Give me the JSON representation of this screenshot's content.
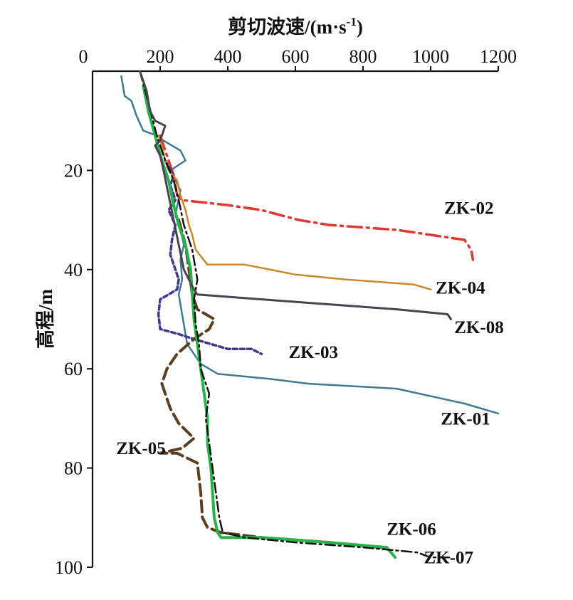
{
  "chart_data": {
    "type": "line",
    "title": "",
    "xlabel": "剪切波速/(m·s",
    "xlabel_sup": "-1",
    "xlabel_end": ")",
    "ylabel": "高程/m",
    "xlim": [
      0,
      1200
    ],
    "ylim": [
      0,
      100
    ],
    "x_ticks": [
      "0",
      "200",
      "400",
      "600",
      "800",
      "1000",
      "1200"
    ],
    "y_ticks": [
      "20",
      "40",
      "60",
      "80",
      "100"
    ],
    "x_tick_values": [
      0,
      200,
      400,
      600,
      800,
      1000,
      1200
    ],
    "y_tick_values": [
      20,
      40,
      60,
      80,
      100
    ],
    "x_axis_position": "top",
    "y_axis_inverted": true,
    "grid": false,
    "series": [
      {
        "name": "ZK-01",
        "color": "#3f7a93",
        "dash": "solid",
        "width": 2.5,
        "points": [
          [
            85,
            1
          ],
          [
            95,
            5
          ],
          [
            115,
            6
          ],
          [
            130,
            9
          ],
          [
            150,
            12
          ],
          [
            190,
            13
          ],
          [
            210,
            14
          ],
          [
            260,
            16
          ],
          [
            275,
            18
          ],
          [
            230,
            20
          ],
          [
            260,
            24
          ],
          [
            245,
            29
          ],
          [
            260,
            32
          ],
          [
            270,
            35
          ],
          [
            260,
            38
          ],
          [
            265,
            42
          ],
          [
            255,
            45
          ],
          [
            280,
            55
          ],
          [
            320,
            59
          ],
          [
            370,
            61
          ],
          [
            520,
            62
          ],
          [
            640,
            63
          ],
          [
            900,
            64
          ],
          [
            1100,
            67
          ],
          [
            1200,
            69
          ]
        ],
        "label": {
          "text": "ZK-01",
          "x": 1030,
          "y": 71.2
        }
      },
      {
        "name": "ZK-02",
        "color": "#e0372e",
        "dash": "20 7 3 7",
        "width": 3.5,
        "points": [
          [
            200,
            13
          ],
          [
            205,
            14
          ],
          [
            215,
            16
          ],
          [
            225,
            18
          ],
          [
            240,
            21
          ],
          [
            245,
            23
          ],
          [
            250,
            25
          ],
          [
            265,
            26
          ],
          [
            400,
            27
          ],
          [
            500,
            28
          ],
          [
            610,
            30
          ],
          [
            700,
            31
          ],
          [
            900,
            32
          ],
          [
            1100,
            34
          ],
          [
            1120,
            36
          ],
          [
            1125,
            38
          ]
        ],
        "label": {
          "text": "ZK-02",
          "x": 1040,
          "y": 28.8
        }
      },
      {
        "name": "ZK-03",
        "color": "#3f3b8c",
        "dash": "6 4",
        "width": 3.5,
        "points": [
          [
            215,
            18
          ],
          [
            240,
            21
          ],
          [
            230,
            23
          ],
          [
            245,
            26
          ],
          [
            225,
            28
          ],
          [
            245,
            31
          ],
          [
            235,
            34
          ],
          [
            230,
            37
          ],
          [
            245,
            40
          ],
          [
            255,
            42
          ],
          [
            250,
            44
          ],
          [
            200,
            46
          ],
          [
            195,
            49
          ],
          [
            200,
            52
          ],
          [
            255,
            53
          ],
          [
            300,
            54
          ],
          [
            400,
            56
          ],
          [
            470,
            56
          ],
          [
            500,
            57
          ]
        ],
        "label": {
          "text": "ZK-03",
          "x": 580,
          "y": 57.8
        }
      },
      {
        "name": "ZK-04",
        "color": "#c8882c",
        "dash": "solid",
        "width": 2.5,
        "points": [
          [
            195,
            13
          ],
          [
            205,
            15
          ],
          [
            215,
            18
          ],
          [
            225,
            20
          ],
          [
            250,
            22
          ],
          [
            260,
            25
          ],
          [
            275,
            28
          ],
          [
            285,
            31
          ],
          [
            295,
            33
          ],
          [
            305,
            36
          ],
          [
            340,
            39
          ],
          [
            450,
            39
          ],
          [
            600,
            41
          ],
          [
            750,
            42
          ],
          [
            950,
            43
          ],
          [
            1000,
            44
          ]
        ],
        "label": {
          "text": "ZK-04",
          "x": 1015,
          "y": 44.8
        }
      },
      {
        "name": "ZK-05",
        "color": "#5c3f22",
        "dash": "16 7",
        "width": 4,
        "points": [
          [
            255,
            30
          ],
          [
            275,
            35
          ],
          [
            285,
            40
          ],
          [
            295,
            45
          ],
          [
            310,
            48
          ],
          [
            360,
            50
          ],
          [
            345,
            52
          ],
          [
            300,
            54
          ],
          [
            250,
            57
          ],
          [
            220,
            60
          ],
          [
            205,
            63
          ],
          [
            215,
            65
          ],
          [
            230,
            68
          ],
          [
            255,
            71
          ],
          [
            300,
            74
          ],
          [
            265,
            76
          ],
          [
            200,
            77
          ],
          [
            250,
            77
          ],
          [
            310,
            79
          ],
          [
            320,
            85
          ],
          [
            325,
            90
          ],
          [
            340,
            92
          ],
          [
            380,
            93
          ],
          [
            500,
            94
          ],
          [
            700,
            95
          ],
          [
            850,
            96
          ]
        ],
        "label": {
          "text": "ZK-05",
          "x": 70,
          "y": 77.2
        }
      },
      {
        "name": "ZK-06",
        "color": "#27b24a",
        "dash": "solid",
        "width": 4,
        "points": [
          [
            150,
            3
          ],
          [
            165,
            8
          ],
          [
            185,
            13
          ],
          [
            205,
            18
          ],
          [
            225,
            22
          ],
          [
            240,
            27
          ],
          [
            255,
            31
          ],
          [
            275,
            35
          ],
          [
            290,
            40
          ],
          [
            295,
            45
          ],
          [
            300,
            50
          ],
          [
            310,
            55
          ],
          [
            320,
            60
          ],
          [
            330,
            65
          ],
          [
            340,
            70
          ],
          [
            340,
            75
          ],
          [
            350,
            80
          ],
          [
            355,
            85
          ],
          [
            360,
            90
          ],
          [
            370,
            93
          ],
          [
            380,
            94
          ],
          [
            500,
            94
          ],
          [
            700,
            95
          ],
          [
            870,
            96
          ],
          [
            895,
            98
          ]
        ],
        "label": {
          "text": "ZK-06",
          "x": 870,
          "y": 93.5
        }
      },
      {
        "name": "ZK-07",
        "color": "#111111",
        "dash": "14 5 3 5",
        "width": 2.5,
        "points": [
          [
            140,
            0
          ],
          [
            160,
            5
          ],
          [
            175,
            9
          ],
          [
            190,
            13
          ],
          [
            215,
            18
          ],
          [
            240,
            22
          ],
          [
            255,
            26
          ],
          [
            270,
            31
          ],
          [
            295,
            36
          ],
          [
            310,
            42
          ],
          [
            300,
            46
          ],
          [
            305,
            51
          ],
          [
            315,
            55
          ],
          [
            320,
            60
          ],
          [
            345,
            65
          ],
          [
            335,
            70
          ],
          [
            345,
            75
          ],
          [
            355,
            80
          ],
          [
            365,
            85
          ],
          [
            375,
            90
          ],
          [
            385,
            93
          ],
          [
            450,
            94
          ],
          [
            600,
            95
          ],
          [
            800,
            96
          ],
          [
            960,
            97
          ],
          [
            1000,
            98
          ],
          [
            1060,
            98
          ]
        ],
        "label": {
          "text": "ZK-07",
          "x": 980,
          "y": 99.2
        }
      },
      {
        "name": "ZK-08",
        "color": "#474350",
        "dash": "solid",
        "width": 3,
        "points": [
          [
            140,
            0
          ],
          [
            160,
            4
          ],
          [
            170,
            8
          ],
          [
            185,
            10
          ],
          [
            215,
            11
          ],
          [
            200,
            14
          ],
          [
            185,
            15
          ],
          [
            200,
            17
          ],
          [
            210,
            20
          ],
          [
            225,
            25
          ],
          [
            240,
            30
          ],
          [
            255,
            35
          ],
          [
            270,
            40
          ],
          [
            285,
            42
          ],
          [
            300,
            44
          ],
          [
            310,
            45
          ],
          [
            500,
            46
          ],
          [
            700,
            47
          ],
          [
            900,
            48
          ],
          [
            1050,
            49
          ],
          [
            1060,
            50
          ]
        ],
        "label": {
          "text": "ZK-08",
          "x": 1070,
          "y": 52.8
        }
      }
    ]
  }
}
